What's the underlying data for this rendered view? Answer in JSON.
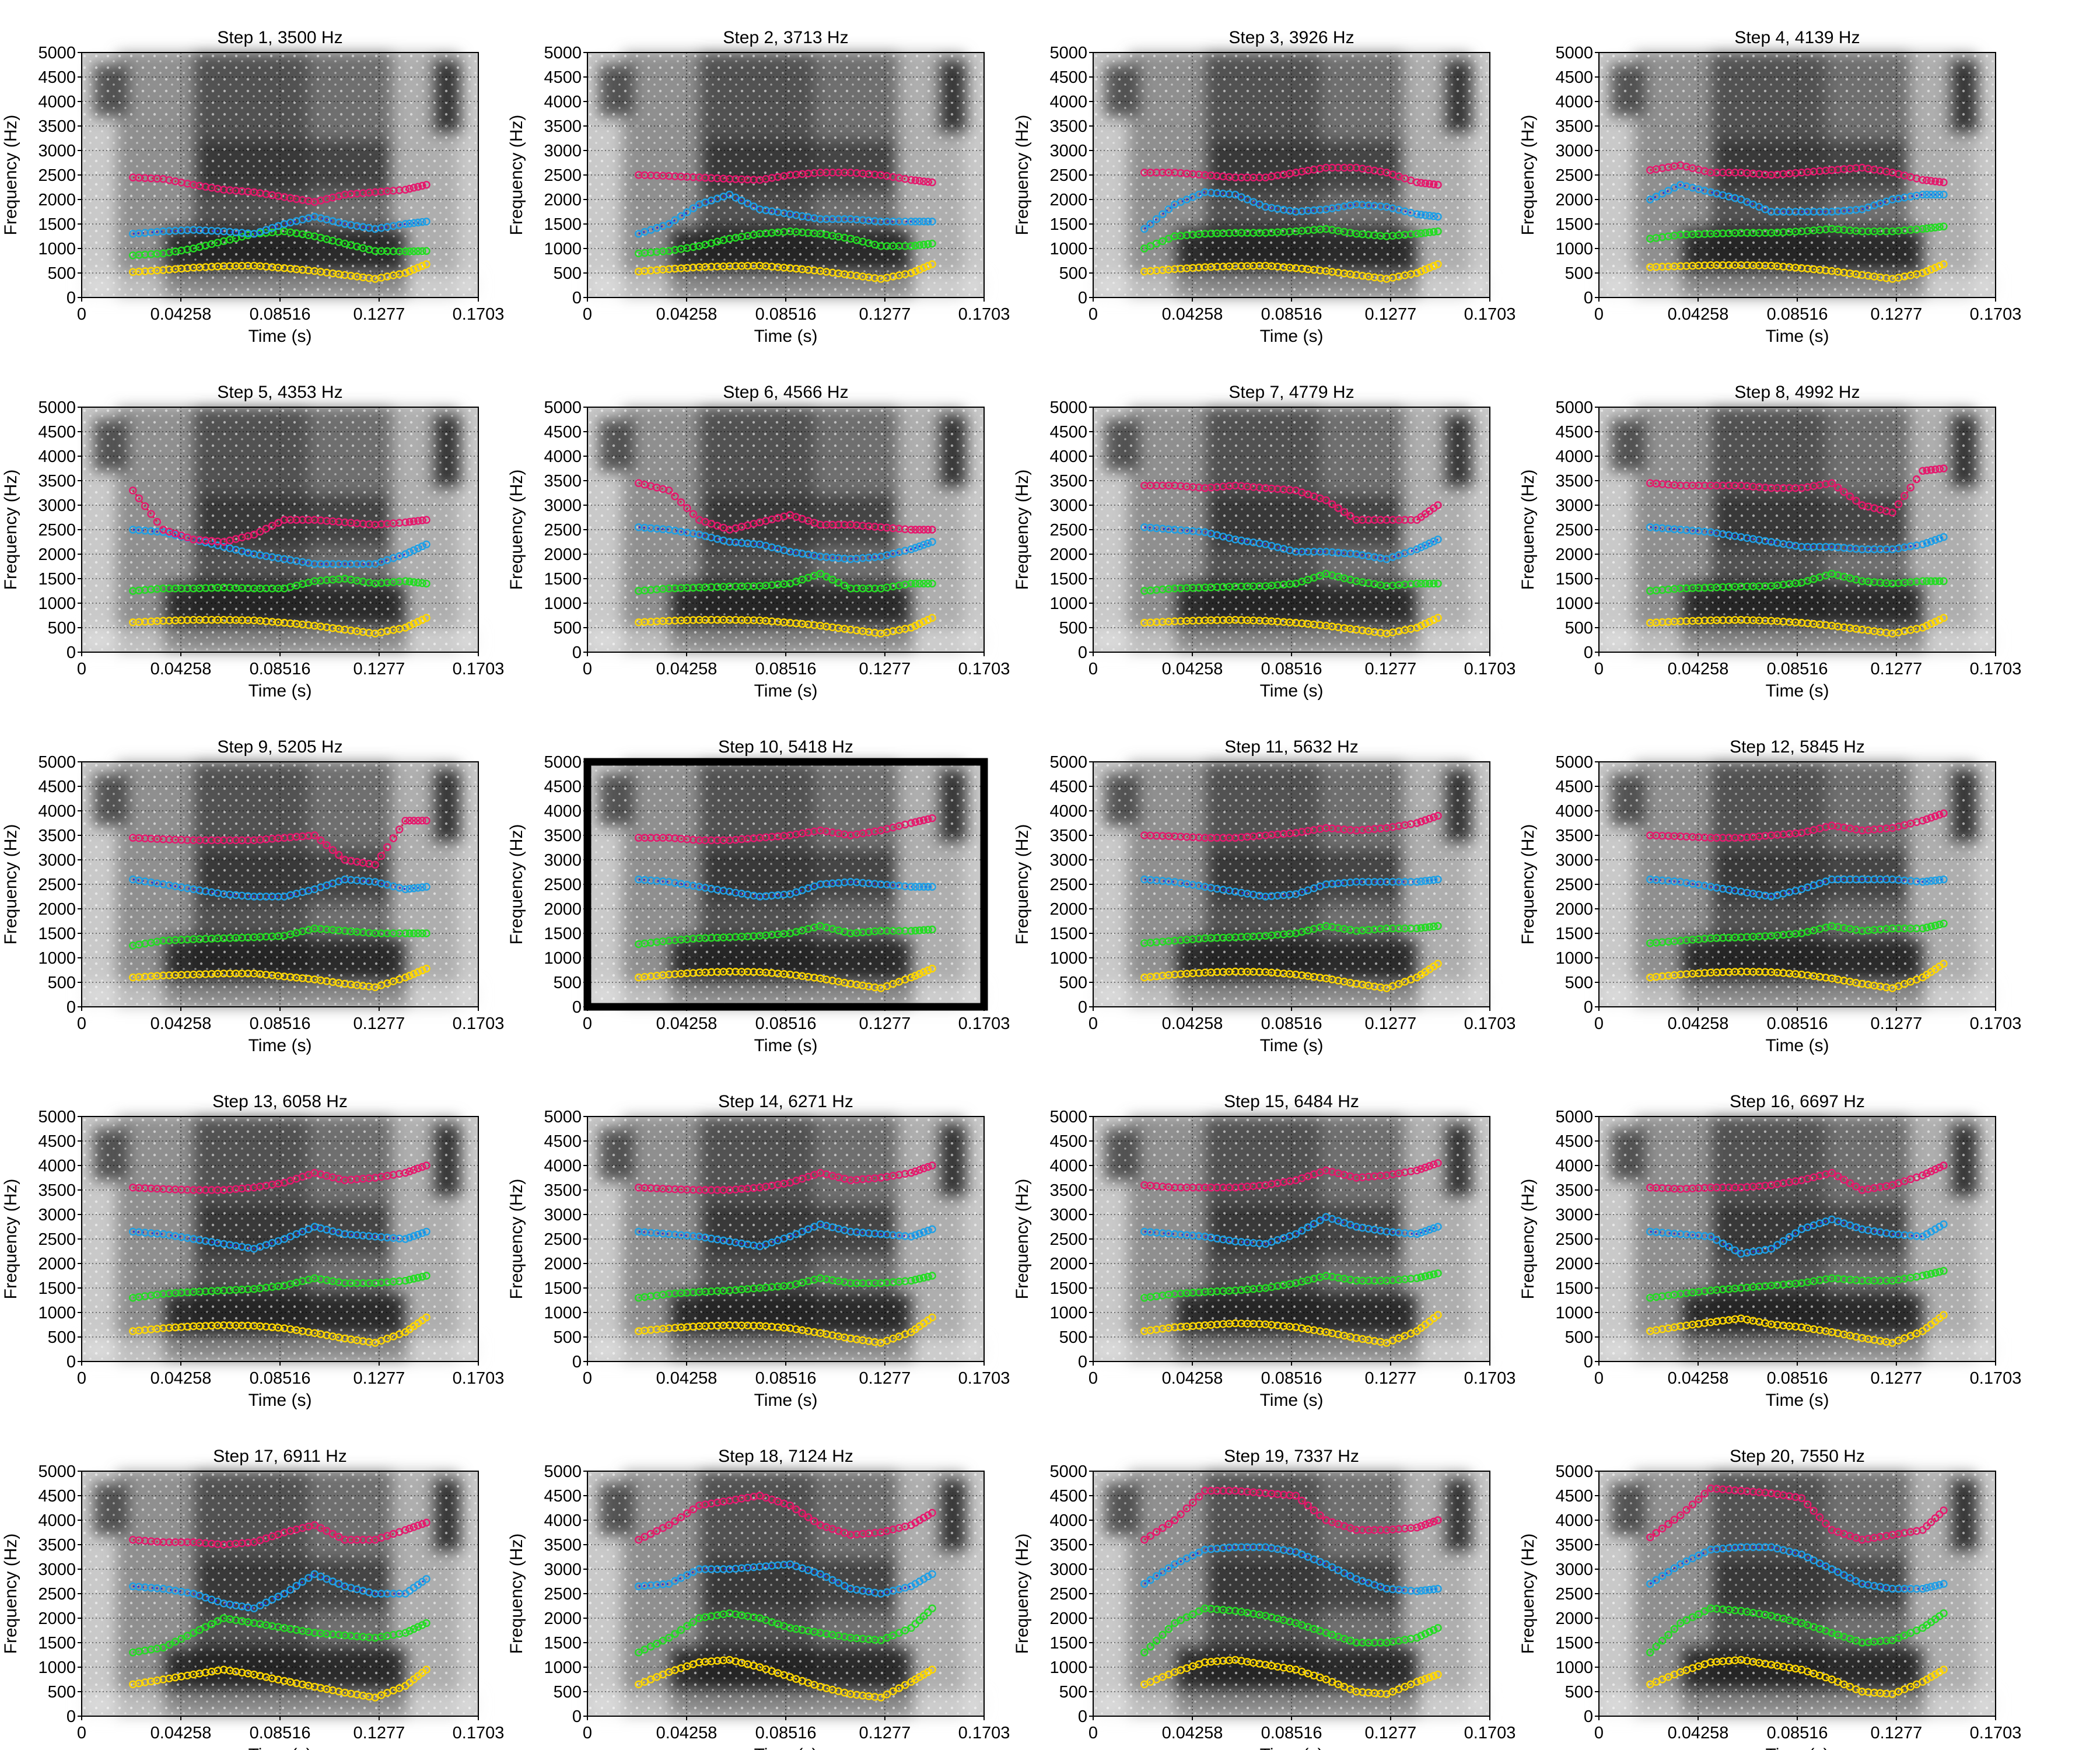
{
  "figure": {
    "xlabel": "Time (s)",
    "ylabel": "Frequency (Hz)",
    "x_ticks": [
      "0",
      "0.04258",
      "0.08516",
      "0.1277",
      "0.1703"
    ],
    "y_ticks": [
      "0",
      "500",
      "1000",
      "1500",
      "2000",
      "2500",
      "3000",
      "3500",
      "4000",
      "4500",
      "5000"
    ],
    "colors": {
      "F1": "#ffd700",
      "F2": "#22dd22",
      "F3": "#1ea0e6",
      "F4": "#e6186e",
      "track_F3": "#2a2ad6",
      "track_F4": "#cc2244",
      "highlight_border": "#000000"
    },
    "highlighted_panel": "Step 10, 5418 Hz"
  },
  "chart_data": {
    "type": "scatter",
    "layout": "5 rows x 4 columns of spectrogram panels with formant tracks",
    "background": "grayscale spectrogram",
    "xlim": [
      0,
      0.1703
    ],
    "ylim": [
      0,
      5000
    ],
    "grid": true,
    "panels": [
      {
        "title": "Step 1, 3500 Hz",
        "F1": [
          520,
          560,
          610,
          640,
          650,
          600,
          540,
          460,
          380,
          500,
          680
        ],
        "F2": [
          860,
          900,
          1000,
          1150,
          1300,
          1350,
          1250,
          1100,
          950,
          940,
          950
        ],
        "F3": [
          1300,
          1350,
          1380,
          1350,
          1300,
          1500,
          1650,
          1500,
          1400,
          1500,
          1550
        ],
        "F4": [
          2450,
          2420,
          2300,
          2200,
          2150,
          2050,
          1950,
          2100,
          2150,
          2200,
          2300
        ]
      },
      {
        "title": "Step 2, 3713 Hz",
        "F1": [
          530,
          580,
          620,
          640,
          650,
          600,
          540,
          460,
          380,
          500,
          680
        ],
        "F2": [
          900,
          950,
          1050,
          1200,
          1300,
          1350,
          1300,
          1200,
          1050,
          1050,
          1100
        ],
        "F3": [
          1300,
          1500,
          1900,
          2100,
          1800,
          1700,
          1600,
          1600,
          1550,
          1550,
          1550
        ],
        "F4": [
          2500,
          2480,
          2450,
          2420,
          2400,
          2500,
          2550,
          2550,
          2500,
          2400,
          2350
        ]
      },
      {
        "title": "Step 3, 3926 Hz",
        "F1": [
          530,
          580,
          620,
          640,
          650,
          600,
          540,
          460,
          380,
          500,
          680
        ],
        "F2": [
          1000,
          1250,
          1300,
          1320,
          1320,
          1350,
          1400,
          1300,
          1250,
          1300,
          1350
        ],
        "F3": [
          1400,
          1900,
          2150,
          2100,
          1850,
          1750,
          1800,
          1900,
          1850,
          1700,
          1650
        ],
        "F4": [
          2550,
          2550,
          2500,
          2450,
          2450,
          2550,
          2650,
          2650,
          2550,
          2350,
          2300
        ]
      },
      {
        "title": "Step 4, 4139 Hz",
        "F1": [
          620,
          640,
          660,
          660,
          650,
          600,
          540,
          460,
          380,
          500,
          680
        ],
        "F2": [
          1200,
          1280,
          1300,
          1320,
          1320,
          1350,
          1400,
          1350,
          1350,
          1400,
          1450
        ],
        "F3": [
          2000,
          2300,
          2150,
          2000,
          1750,
          1750,
          1750,
          1800,
          2000,
          2100,
          2100
        ],
        "F4": [
          2600,
          2700,
          2550,
          2550,
          2500,
          2550,
          2600,
          2650,
          2550,
          2400,
          2350
        ]
      },
      {
        "title": "Step 5, 4353 Hz",
        "F1": [
          610,
          640,
          660,
          660,
          650,
          600,
          540,
          460,
          380,
          500,
          700
        ],
        "F2": [
          1250,
          1300,
          1300,
          1320,
          1300,
          1300,
          1450,
          1500,
          1400,
          1450,
          1400
        ],
        "F3": [
          2500,
          2450,
          2300,
          2150,
          2000,
          1900,
          1800,
          1800,
          1800,
          2000,
          2200
        ],
        "F4": [
          3300,
          2500,
          2300,
          2250,
          2400,
          2700,
          2700,
          2650,
          2600,
          2650,
          2700
        ]
      },
      {
        "title": "Step 6, 4566 Hz",
        "F1": [
          610,
          640,
          660,
          660,
          650,
          600,
          540,
          460,
          380,
          500,
          700
        ],
        "F2": [
          1250,
          1300,
          1320,
          1340,
          1350,
          1400,
          1600,
          1300,
          1300,
          1400,
          1400
        ],
        "F3": [
          2550,
          2500,
          2400,
          2250,
          2200,
          2050,
          1950,
          1900,
          1950,
          2100,
          2250
        ],
        "F4": [
          3450,
          3300,
          2700,
          2500,
          2650,
          2800,
          2600,
          2600,
          2550,
          2500,
          2500
        ]
      },
      {
        "title": "Step 7, 4779 Hz",
        "F1": [
          600,
          630,
          650,
          660,
          640,
          600,
          540,
          460,
          380,
          500,
          700
        ],
        "F2": [
          1250,
          1300,
          1320,
          1340,
          1350,
          1400,
          1600,
          1450,
          1350,
          1400,
          1400
        ],
        "F3": [
          2550,
          2500,
          2450,
          2300,
          2200,
          2050,
          2050,
          2000,
          1900,
          2100,
          2300
        ],
        "F4": [
          3400,
          3400,
          3350,
          3400,
          3350,
          3300,
          3100,
          2700,
          2700,
          2700,
          3000
        ]
      },
      {
        "title": "Step 8, 4992 Hz",
        "F1": [
          600,
          630,
          650,
          660,
          640,
          600,
          540,
          460,
          380,
          500,
          700
        ],
        "F2": [
          1250,
          1300,
          1320,
          1340,
          1350,
          1420,
          1600,
          1450,
          1400,
          1450,
          1450
        ],
        "F3": [
          2550,
          2500,
          2450,
          2350,
          2250,
          2150,
          2150,
          2100,
          2100,
          2200,
          2350
        ],
        "F4": [
          3450,
          3400,
          3400,
          3400,
          3350,
          3350,
          3450,
          3000,
          2850,
          3700,
          3750
        ]
      },
      {
        "title": "Step 9, 5205 Hz",
        "F1": [
          600,
          640,
          660,
          680,
          680,
          620,
          560,
          470,
          400,
          600,
          780
        ],
        "F2": [
          1250,
          1350,
          1380,
          1400,
          1420,
          1450,
          1600,
          1550,
          1500,
          1500,
          1500
        ],
        "F3": [
          2600,
          2500,
          2400,
          2300,
          2250,
          2250,
          2400,
          2600,
          2550,
          2400,
          2450
        ],
        "F4": [
          3450,
          3420,
          3400,
          3400,
          3400,
          3450,
          3500,
          3000,
          2900,
          3800,
          3800
        ]
      },
      {
        "title": "Step 10, 5418 Hz",
        "F1": [
          600,
          660,
          700,
          720,
          710,
          660,
          580,
          470,
          380,
          600,
          780
        ],
        "F2": [
          1280,
          1350,
          1400,
          1420,
          1450,
          1500,
          1650,
          1500,
          1550,
          1550,
          1580
        ],
        "F3": [
          2600,
          2550,
          2450,
          2350,
          2250,
          2300,
          2500,
          2550,
          2500,
          2450,
          2450
        ],
        "F4": [
          3450,
          3450,
          3400,
          3400,
          3450,
          3500,
          3600,
          3500,
          3600,
          3750,
          3850
        ]
      },
      {
        "title": "Step 11, 5632 Hz",
        "F1": [
          600,
          660,
          700,
          720,
          710,
          660,
          580,
          470,
          380,
          600,
          880
        ],
        "F2": [
          1300,
          1350,
          1400,
          1420,
          1450,
          1500,
          1650,
          1550,
          1600,
          1600,
          1650
        ],
        "F3": [
          2600,
          2550,
          2450,
          2350,
          2250,
          2300,
          2500,
          2550,
          2550,
          2550,
          2600
        ],
        "F4": [
          3500,
          3480,
          3450,
          3450,
          3500,
          3550,
          3650,
          3600,
          3650,
          3750,
          3900
        ]
      },
      {
        "title": "Step 12, 5845 Hz",
        "F1": [
          600,
          660,
          700,
          720,
          710,
          660,
          580,
          470,
          380,
          600,
          880
        ],
        "F2": [
          1300,
          1350,
          1400,
          1420,
          1450,
          1500,
          1650,
          1550,
          1600,
          1600,
          1700
        ],
        "F3": [
          2600,
          2550,
          2450,
          2350,
          2250,
          2400,
          2600,
          2600,
          2600,
          2550,
          2600
        ],
        "F4": [
          3500,
          3480,
          3450,
          3450,
          3500,
          3550,
          3700,
          3600,
          3650,
          3800,
          3950
        ]
      },
      {
        "title": "Step 13, 6058 Hz",
        "F1": [
          620,
          680,
          720,
          740,
          730,
          680,
          580,
          470,
          380,
          600,
          900
        ],
        "F2": [
          1300,
          1380,
          1420,
          1450,
          1480,
          1550,
          1700,
          1600,
          1600,
          1650,
          1750
        ],
        "F3": [
          2650,
          2600,
          2500,
          2400,
          2300,
          2500,
          2750,
          2600,
          2550,
          2500,
          2650
        ],
        "F4": [
          3550,
          3520,
          3500,
          3500,
          3550,
          3650,
          3850,
          3700,
          3750,
          3850,
          4000
        ]
      },
      {
        "title": "Step 14, 6271 Hz",
        "F1": [
          620,
          680,
          720,
          740,
          730,
          680,
          580,
          470,
          380,
          600,
          900
        ],
        "F2": [
          1300,
          1380,
          1420,
          1450,
          1500,
          1550,
          1700,
          1600,
          1600,
          1650,
          1750
        ],
        "F3": [
          2650,
          2600,
          2550,
          2450,
          2350,
          2550,
          2800,
          2650,
          2600,
          2550,
          2700
        ],
        "F4": [
          3550,
          3520,
          3500,
          3500,
          3550,
          3650,
          3850,
          3700,
          3750,
          3850,
          4000
        ]
      },
      {
        "title": "Step 15, 6484 Hz",
        "F1": [
          620,
          700,
          740,
          780,
          760,
          700,
          600,
          480,
          380,
          620,
          950
        ],
        "F2": [
          1300,
          1380,
          1420,
          1450,
          1500,
          1600,
          1750,
          1650,
          1650,
          1700,
          1800
        ],
        "F3": [
          2650,
          2600,
          2550,
          2450,
          2400,
          2600,
          2950,
          2750,
          2650,
          2600,
          2750
        ],
        "F4": [
          3600,
          3550,
          3550,
          3550,
          3600,
          3700,
          3900,
          3750,
          3800,
          3900,
          4050
        ]
      },
      {
        "title": "Step 16, 6697 Hz",
        "F1": [
          620,
          720,
          800,
          880,
          760,
          700,
          600,
          480,
          380,
          620,
          950
        ],
        "F2": [
          1300,
          1380,
          1450,
          1500,
          1550,
          1600,
          1700,
          1650,
          1650,
          1750,
          1850
        ],
        "F3": [
          2650,
          2600,
          2550,
          2200,
          2300,
          2700,
          2900,
          2700,
          2600,
          2550,
          2800
        ],
        "F4": [
          3550,
          3520,
          3550,
          3550,
          3600,
          3700,
          3850,
          3500,
          3600,
          3800,
          4000
        ]
      },
      {
        "title": "Step 17, 6911 Hz",
        "F1": [
          650,
          750,
          850,
          950,
          850,
          720,
          600,
          480,
          380,
          620,
          950
        ],
        "F2": [
          1300,
          1400,
          1700,
          2000,
          1900,
          1800,
          1700,
          1650,
          1600,
          1700,
          1900
        ],
        "F3": [
          2650,
          2600,
          2500,
          2300,
          2200,
          2500,
          2900,
          2650,
          2500,
          2500,
          2800
        ],
        "F4": [
          3600,
          3550,
          3550,
          3500,
          3550,
          3750,
          3900,
          3600,
          3600,
          3800,
          3950
        ]
      },
      {
        "title": "Step 18, 7124 Hz",
        "F1": [
          650,
          900,
          1100,
          1150,
          1000,
          800,
          600,
          450,
          380,
          700,
          950
        ],
        "F2": [
          1300,
          1600,
          2000,
          2100,
          2000,
          1800,
          1700,
          1600,
          1550,
          1800,
          2200
        ],
        "F3": [
          2650,
          2700,
          3000,
          3000,
          3050,
          3100,
          2900,
          2600,
          2500,
          2650,
          2900
        ],
        "F4": [
          3600,
          3900,
          4300,
          4400,
          4500,
          4300,
          3900,
          3700,
          3750,
          3900,
          4150
        ]
      },
      {
        "title": "Step 19, 7337 Hz",
        "F1": [
          650,
          900,
          1100,
          1150,
          1050,
          950,
          750,
          500,
          450,
          700,
          850
        ],
        "F2": [
          1300,
          1900,
          2200,
          2150,
          2050,
          1900,
          1700,
          1500,
          1500,
          1600,
          1800
        ],
        "F3": [
          2700,
          3100,
          3400,
          3450,
          3450,
          3350,
          3100,
          2800,
          2600,
          2550,
          2600
        ],
        "F4": [
          3600,
          4000,
          4600,
          4600,
          4550,
          4500,
          4000,
          3800,
          3800,
          3850,
          4000
        ]
      },
      {
        "title": "Step 20, 7550 Hz",
        "F1": [
          650,
          900,
          1100,
          1150,
          1050,
          950,
          750,
          500,
          450,
          700,
          950
        ],
        "F2": [
          1300,
          1900,
          2200,
          2150,
          2050,
          1900,
          1700,
          1500,
          1550,
          1800,
          2100
        ],
        "F3": [
          2700,
          3100,
          3400,
          3450,
          3450,
          3300,
          3000,
          2700,
          2600,
          2600,
          2700
        ],
        "F4": [
          3650,
          4100,
          4650,
          4600,
          4550,
          4450,
          3800,
          3600,
          3700,
          3800,
          4200
        ]
      }
    ],
    "x": [
      0.022,
      0.035,
      0.048,
      0.061,
      0.074,
      0.087,
      0.1,
      0.113,
      0.126,
      0.139,
      0.148
    ]
  }
}
